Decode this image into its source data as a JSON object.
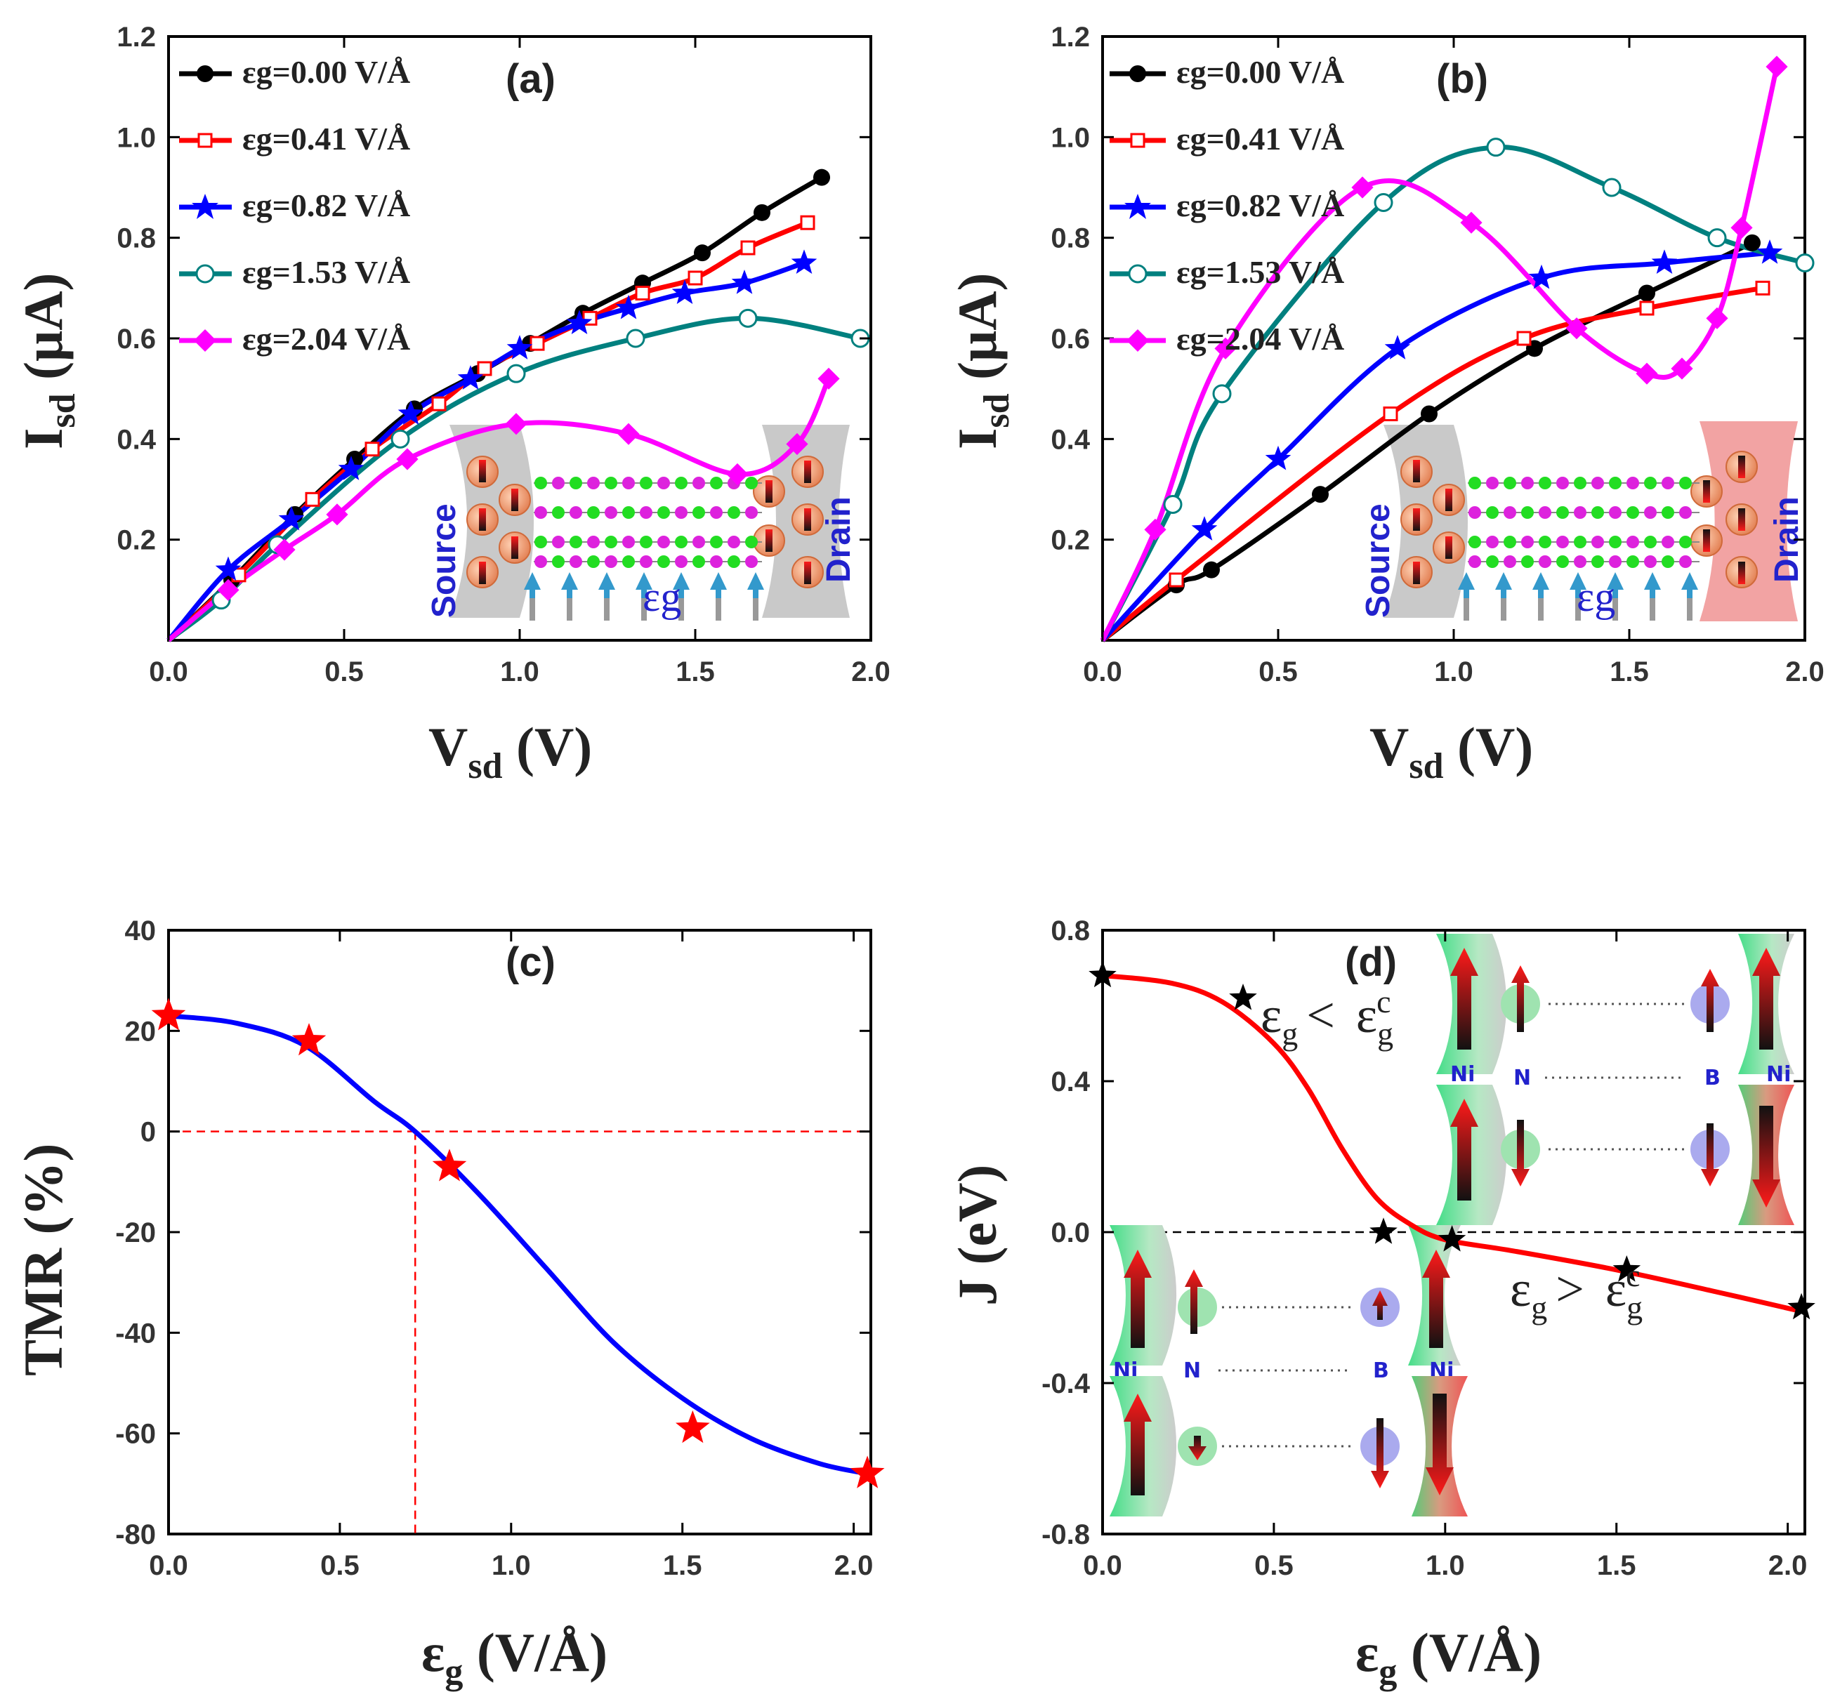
{
  "chart_data": [
    {
      "id": "a",
      "type": "line",
      "panel_label": "(a)",
      "xlabel_main": "V",
      "xlabel_sub": "sd",
      "xlabel_unit": " (V)",
      "ylabel_main": "I",
      "ylabel_sub": "sd",
      "ylabel_unit": " (μA)",
      "xlim": [
        0,
        2.0
      ],
      "ylim": [
        0,
        1.2
      ],
      "xticks": [
        0.0,
        0.5,
        1.0,
        1.5,
        2.0
      ],
      "yticks": [
        0.2,
        0.4,
        0.6,
        0.8,
        1.0,
        1.2
      ],
      "xtick_labels": [
        "0.0",
        "0.5",
        "1.0",
        "1.5",
        "2.0"
      ],
      "ytick_labels": [
        "0.2",
        "0.4",
        "0.6",
        "0.8",
        "1.0",
        "1.2"
      ],
      "legend_position": "top-left",
      "series": [
        {
          "name": "εg=0.00 V/Å",
          "color": "#000000",
          "marker": "circle",
          "x": [
            0.0,
            0.18,
            0.36,
            0.53,
            0.7,
            0.88,
            1.03,
            1.18,
            1.35,
            1.52,
            1.69,
            1.86
          ],
          "y": [
            0.0,
            0.12,
            0.25,
            0.36,
            0.46,
            0.53,
            0.59,
            0.65,
            0.71,
            0.77,
            0.85,
            0.92
          ]
        },
        {
          "name": "εg=0.41 V/Å",
          "color": "#ff0000",
          "marker": "square-open",
          "x": [
            0.0,
            0.2,
            0.41,
            0.58,
            0.77,
            0.9,
            1.05,
            1.2,
            1.35,
            1.5,
            1.65,
            1.82
          ],
          "y": [
            0.0,
            0.13,
            0.28,
            0.38,
            0.47,
            0.54,
            0.59,
            0.64,
            0.69,
            0.72,
            0.78,
            0.83
          ]
        },
        {
          "name": "εg=0.82 V/Å",
          "color": "#0000ff",
          "marker": "star",
          "x": [
            0.0,
            0.17,
            0.35,
            0.52,
            0.69,
            0.86,
            1.0,
            1.17,
            1.31,
            1.47,
            1.64,
            1.81
          ],
          "y": [
            0.0,
            0.14,
            0.24,
            0.34,
            0.45,
            0.52,
            0.58,
            0.63,
            0.66,
            0.69,
            0.71,
            0.75
          ]
        },
        {
          "name": "εg=1.53 V/Å",
          "color": "#00807f",
          "marker": "circle-open",
          "x": [
            0.0,
            0.15,
            0.31,
            0.66,
            0.99,
            1.33,
            1.65,
            1.97
          ],
          "y": [
            0.0,
            0.08,
            0.19,
            0.4,
            0.53,
            0.6,
            0.64,
            0.6
          ]
        },
        {
          "name": "εg=2.04 V/Å",
          "color": "#ff00ff",
          "marker": "diamond",
          "x": [
            0.0,
            0.17,
            0.33,
            0.48,
            0.68,
            0.99,
            1.31,
            1.62,
            1.79,
            1.88
          ],
          "y": [
            0.0,
            0.1,
            0.18,
            0.25,
            0.36,
            0.43,
            0.41,
            0.33,
            0.39,
            0.52
          ]
        }
      ],
      "inset_labels": {
        "source": "Source",
        "drain": "Drain",
        "field": "εg"
      }
    },
    {
      "id": "b",
      "type": "line",
      "panel_label": "(b)",
      "xlabel_main": "V",
      "xlabel_sub": "sd",
      "xlabel_unit": " (V)",
      "ylabel_main": "I",
      "ylabel_sub": "sd",
      "ylabel_unit": " (μA)",
      "xlim": [
        0,
        2.0
      ],
      "ylim": [
        0,
        1.2
      ],
      "xticks": [
        0.0,
        0.5,
        1.0,
        1.5,
        2.0
      ],
      "yticks": [
        0.2,
        0.4,
        0.6,
        0.8,
        1.0,
        1.2
      ],
      "xtick_labels": [
        "0.0",
        "0.5",
        "1.0",
        "1.5",
        "2.0"
      ],
      "ytick_labels": [
        "0.2",
        "0.4",
        "0.6",
        "0.8",
        "1.0",
        "1.2"
      ],
      "legend_position": "top-left",
      "series": [
        {
          "name": "εg=0.00 V/Å",
          "color": "#000000",
          "marker": "circle",
          "x": [
            0.0,
            0.21,
            0.31,
            0.62,
            0.93,
            1.23,
            1.55,
            1.85
          ],
          "y": [
            0.0,
            0.11,
            0.14,
            0.29,
            0.45,
            0.58,
            0.69,
            0.79
          ]
        },
        {
          "name": "εg=0.41 V/Å",
          "color": "#ff0000",
          "marker": "square-open",
          "x": [
            0.0,
            0.21,
            0.82,
            1.2,
            1.55,
            1.88
          ],
          "y": [
            0.0,
            0.12,
            0.45,
            0.6,
            0.66,
            0.7
          ]
        },
        {
          "name": "εg=0.82 V/Å",
          "color": "#0000ff",
          "marker": "star",
          "x": [
            0.0,
            0.29,
            0.5,
            0.84,
            1.25,
            1.6,
            1.9
          ],
          "y": [
            0.0,
            0.22,
            0.36,
            0.58,
            0.72,
            0.75,
            0.77
          ]
        },
        {
          "name": "εg=1.53 V/Å",
          "color": "#00807f",
          "marker": "circle-open",
          "x": [
            0.0,
            0.2,
            0.34,
            0.8,
            1.12,
            1.45,
            1.75,
            2.0
          ],
          "y": [
            0.0,
            0.27,
            0.49,
            0.87,
            0.98,
            0.9,
            0.8,
            0.75
          ]
        },
        {
          "name": "εg=2.04 V/Å",
          "color": "#ff00ff",
          "marker": "diamond",
          "x": [
            0.0,
            0.15,
            0.35,
            0.74,
            1.05,
            1.35,
            1.55,
            1.65,
            1.75,
            1.82,
            1.92
          ],
          "y": [
            0.0,
            0.22,
            0.58,
            0.9,
            0.83,
            0.62,
            0.53,
            0.54,
            0.64,
            0.82,
            1.14
          ]
        }
      ],
      "inset_labels": {
        "source": "Source",
        "drain": "Drain",
        "field": "εg"
      }
    },
    {
      "id": "c",
      "type": "scatter",
      "panel_label": "(c)",
      "xlabel_main": "ε",
      "xlabel_sub": "g",
      "xlabel_unit": " (V/Å)",
      "ylabel_main": "TMR (%)",
      "ylabel_sub": "",
      "ylabel_unit": "",
      "xlim": [
        0,
        2.05
      ],
      "ylim": [
        -80,
        40
      ],
      "xticks": [
        0.0,
        0.5,
        1.0,
        1.5,
        2.0
      ],
      "yticks": [
        -80,
        -60,
        -40,
        -20,
        0,
        20,
        40
      ],
      "xtick_labels": [
        "0.0",
        "0.5",
        "1.0",
        "1.5",
        "2.0"
      ],
      "ytick_labels": [
        "-80",
        "-60",
        "-40",
        "-20",
        "0",
        "20",
        "40"
      ],
      "points": {
        "x": [
          0.0,
          0.41,
          0.82,
          1.53,
          2.04
        ],
        "y": [
          23,
          18,
          -7,
          -59,
          -68
        ],
        "color": "#ff0000",
        "marker": "star"
      },
      "fit": {
        "x": [
          0.0,
          0.2,
          0.4,
          0.6,
          0.72,
          0.9,
          1.1,
          1.3,
          1.5,
          1.7,
          1.9,
          2.04
        ],
        "y": [
          23,
          21.5,
          17,
          6,
          0,
          -12,
          -27,
          -42,
          -53,
          -61,
          -66,
          -68
        ],
        "color": "#0000ff"
      },
      "reference_lines": {
        "zero_y": 0,
        "critical_x": 0.72,
        "color": "#ff0000"
      }
    },
    {
      "id": "d",
      "type": "scatter",
      "panel_label": "(d)",
      "xlabel_main": "ε",
      "xlabel_sub": "g",
      "xlabel_unit": " (V/Å)",
      "ylabel_main": "J (eV)",
      "ylabel_sub": "",
      "ylabel_unit": "",
      "xlim": [
        0,
        2.05
      ],
      "ylim": [
        -0.8,
        0.8
      ],
      "xticks": [
        0.0,
        0.5,
        1.0,
        1.5,
        2.0
      ],
      "yticks": [
        -0.8,
        -0.4,
        0.0,
        0.4,
        0.8
      ],
      "xtick_labels": [
        "0.0",
        "0.5",
        "1.0",
        "1.5",
        "2.0"
      ],
      "ytick_labels": [
        "-0.8",
        "-0.4",
        "0.0",
        "0.4",
        "0.8"
      ],
      "points": {
        "x": [
          0.0,
          0.41,
          0.82,
          1.02,
          1.53,
          2.04
        ],
        "y": [
          0.68,
          0.62,
          0.0,
          -0.02,
          -0.1,
          -0.2
        ],
        "color": "#000000",
        "marker": "star"
      },
      "fit": {
        "x": [
          0.0,
          0.2,
          0.35,
          0.5,
          0.6,
          0.7,
          0.8,
          0.9,
          1.0,
          1.2,
          1.5,
          1.8,
          2.04
        ],
        "y": [
          0.68,
          0.66,
          0.61,
          0.5,
          0.38,
          0.22,
          0.09,
          0.02,
          -0.02,
          -0.05,
          -0.1,
          -0.16,
          -0.21
        ],
        "color": "#ff0000"
      },
      "reference_lines": {
        "zero_y": 0,
        "color": "#000000"
      },
      "annotations": {
        "cond_less": "< ",
        "cond_greater": "> ",
        "eps": "ε",
        "sub": "g",
        "sup": "c"
      },
      "atom_labels": {
        "ni": "Ni",
        "n": "N",
        "b": "B"
      }
    }
  ]
}
